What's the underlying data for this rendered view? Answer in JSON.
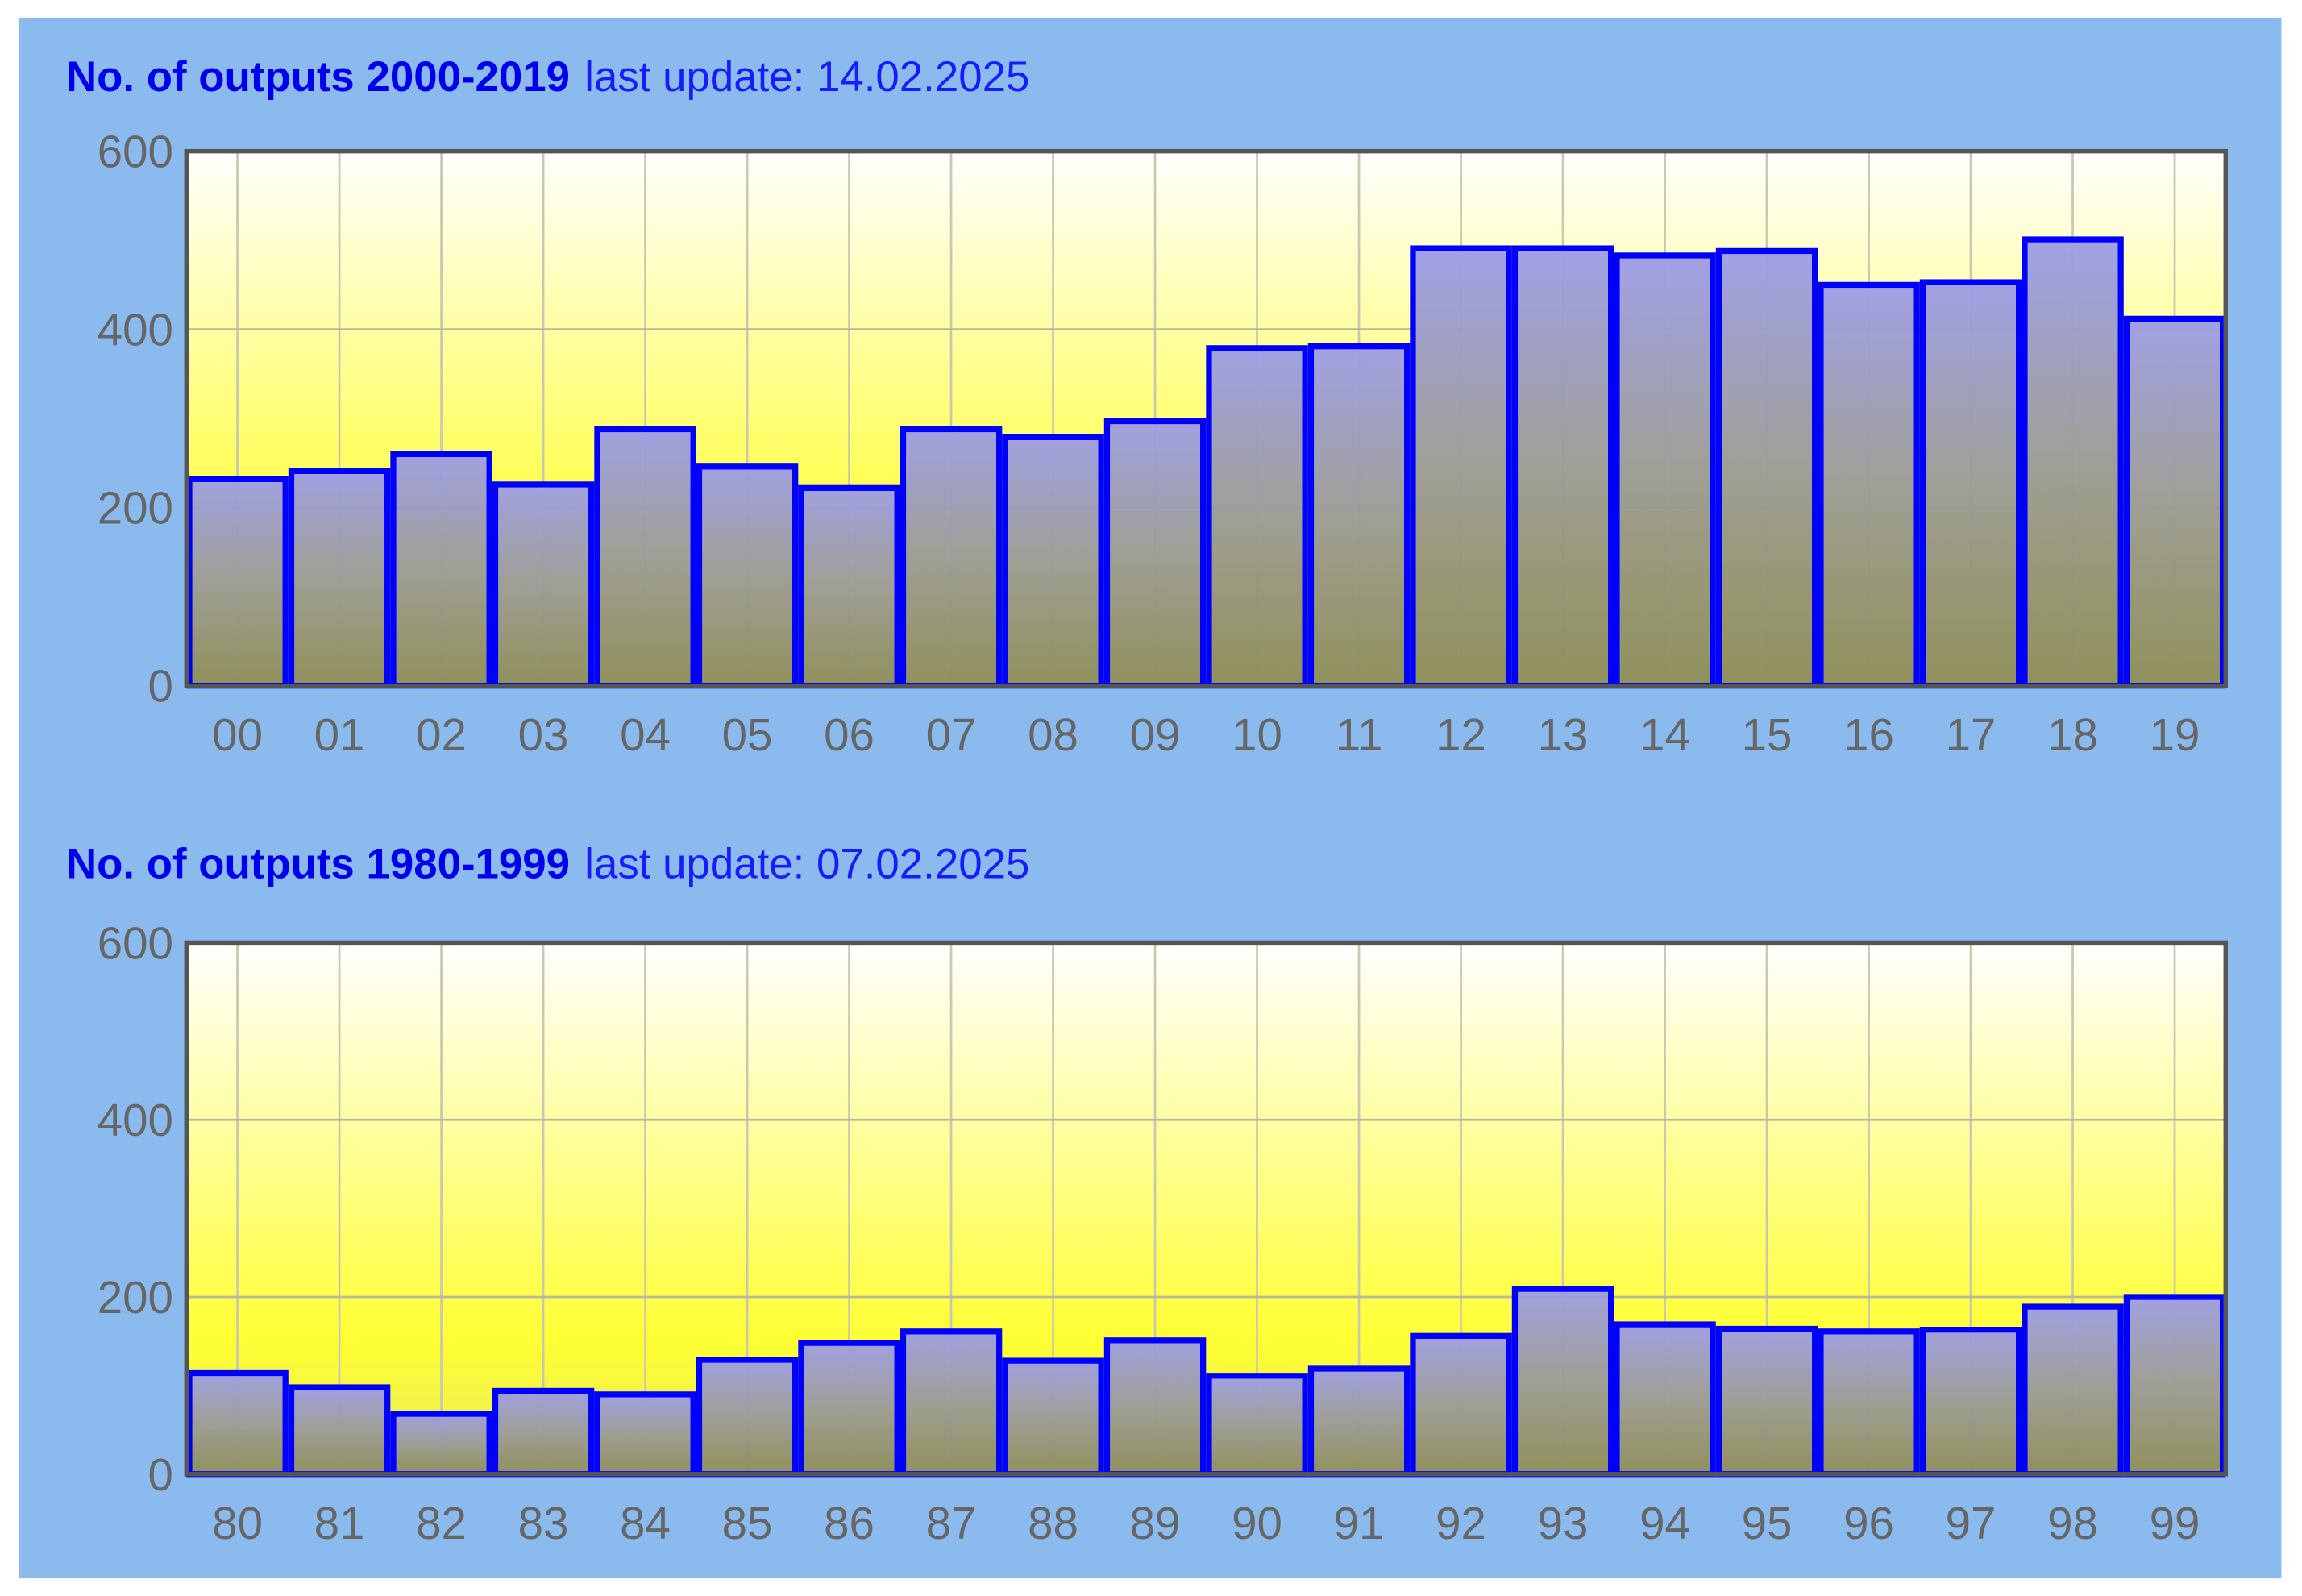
{
  "chart_data": [
    {
      "type": "bar",
      "title": "No. of outputs 2000-2019",
      "subtitle": "last update: 14.02.2025",
      "categories": [
        "00",
        "01",
        "02",
        "03",
        "04",
        "05",
        "06",
        "07",
        "08",
        "09",
        "10",
        "11",
        "12",
        "13",
        "14",
        "15",
        "16",
        "17",
        "18",
        "19"
      ],
      "values": [
        232,
        241,
        260,
        226,
        288,
        246,
        222,
        288,
        279,
        297,
        379,
        381,
        491,
        491,
        483,
        488,
        450,
        453,
        501,
        412
      ],
      "color": "#9999dd",
      "edge_color": "#0000ff",
      "ylim": [
        0,
        600
      ],
      "yticks": [
        0,
        200,
        400,
        600
      ],
      "grid": true
    },
    {
      "type": "bar",
      "title": "No. of outputs 1980-1999",
      "subtitle": "last update: 07.02.2025",
      "categories": [
        "80",
        "81",
        "82",
        "83",
        "84",
        "85",
        "86",
        "87",
        "88",
        "89",
        "90",
        "91",
        "92",
        "93",
        "94",
        "95",
        "96",
        "97",
        "98",
        "99"
      ],
      "values": [
        114,
        98,
        68,
        94,
        90,
        129,
        148,
        161,
        128,
        151,
        111,
        119,
        156,
        209,
        169,
        164,
        161,
        163,
        189,
        200
      ],
      "color": "#9999dd",
      "edge_color": "#0000ff",
      "ylim": [
        0,
        600
      ],
      "yticks": [
        0,
        200,
        400,
        600
      ],
      "grid": true
    }
  ]
}
